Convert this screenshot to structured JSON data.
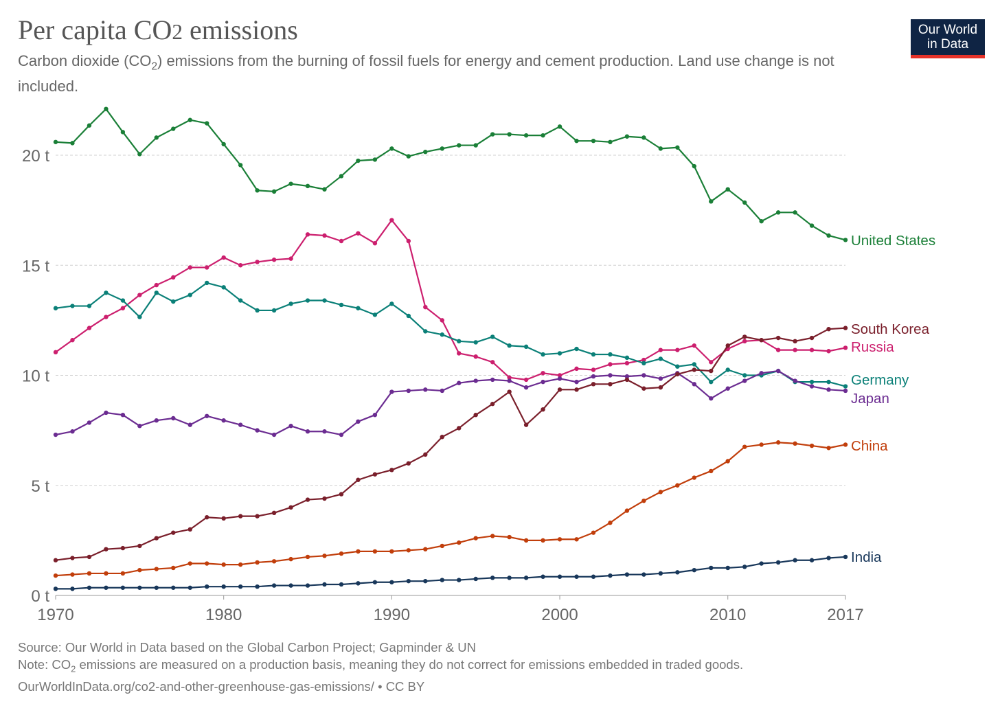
{
  "header": {
    "title_main": "Per capita CO",
    "title_sub": "2",
    "title_end": " emissions",
    "subtitle_a": "Carbon dioxide (CO",
    "subtitle_sub": "2",
    "subtitle_b": ") emissions from the burning of fossil fuels for energy and cement production. Land use change is not included."
  },
  "logo": {
    "line1": "Our World",
    "line2": "in Data",
    "bg": "#0f2444",
    "accent": "#e63229"
  },
  "footer": {
    "source": "Source: Our World in Data based on the Global Carbon Project; Gapminder & UN",
    "note_a": "Note: CO",
    "note_sub": "2",
    "note_b": " emissions are measured on a production basis, meaning they do not correct for emissions embedded in traded goods.",
    "url": "OurWorldInData.org/co2-and-other-greenhouse-gas-emissions/ • CC BY"
  },
  "chart_data": {
    "type": "line",
    "title": "Per capita CO2 emissions",
    "xlabel": "",
    "ylabel": "",
    "xlim": [
      1970,
      2017
    ],
    "ylim": [
      0,
      22.5
    ],
    "x_ticks": [
      "1970",
      "1980",
      "1990",
      "2000",
      "2010",
      "2017"
    ],
    "y_ticks": [
      "0 t",
      "5 t",
      "10 t",
      "15 t",
      "20 t"
    ],
    "y_tick_values": [
      0,
      5,
      10,
      15,
      20
    ],
    "grid": "horizontal dashed",
    "legend": "right end labels",
    "x": [
      1970,
      1971,
      1972,
      1973,
      1974,
      1975,
      1976,
      1977,
      1978,
      1979,
      1980,
      1981,
      1982,
      1983,
      1984,
      1985,
      1986,
      1987,
      1988,
      1989,
      1990,
      1991,
      1992,
      1993,
      1994,
      1995,
      1996,
      1997,
      1998,
      1999,
      2000,
      2001,
      2002,
      2003,
      2004,
      2005,
      2006,
      2007,
      2008,
      2009,
      2010,
      2011,
      2012,
      2013,
      2014,
      2015,
      2016,
      2017
    ],
    "series": [
      {
        "name": "United States",
        "color": "#1a7f37",
        "values": [
          20.6,
          20.55,
          21.35,
          22.1,
          21.05,
          20.05,
          20.8,
          21.2,
          21.6,
          21.45,
          20.5,
          19.55,
          18.4,
          18.35,
          18.7,
          18.6,
          18.45,
          19.05,
          19.75,
          19.8,
          20.3,
          19.95,
          20.15,
          20.3,
          20.45,
          20.45,
          20.95,
          20.95,
          20.9,
          20.9,
          21.3,
          20.65,
          20.65,
          20.6,
          20.85,
          20.8,
          20.3,
          20.35,
          19.5,
          17.9,
          18.45,
          17.85,
          17.0,
          17.4,
          17.4,
          16.8,
          16.35,
          16.15
        ]
      },
      {
        "name": "Russia",
        "color": "#cc1f6e",
        "values": [
          11.05,
          11.6,
          12.15,
          12.65,
          13.05,
          13.65,
          14.1,
          14.45,
          14.9,
          14.9,
          15.35,
          15.0,
          15.15,
          15.25,
          15.3,
          16.4,
          16.35,
          16.1,
          16.45,
          16.0,
          17.05,
          16.1,
          13.1,
          12.5,
          11.0,
          10.85,
          10.6,
          9.9,
          9.8,
          10.1,
          10.0,
          10.3,
          10.25,
          10.5,
          10.55,
          10.7,
          11.15,
          11.15,
          11.35,
          10.6,
          11.2,
          11.55,
          11.6,
          11.15,
          11.15,
          11.15,
          11.1,
          11.25
        ]
      },
      {
        "name": "Germany",
        "color": "#0b8078",
        "values": [
          13.05,
          13.15,
          13.15,
          13.75,
          13.4,
          12.65,
          13.75,
          13.35,
          13.65,
          14.2,
          14.0,
          13.4,
          12.95,
          12.95,
          13.25,
          13.4,
          13.4,
          13.2,
          13.05,
          12.75,
          13.25,
          12.7,
          12.0,
          11.85,
          11.55,
          11.5,
          11.75,
          11.35,
          11.3,
          10.95,
          11.0,
          11.2,
          10.95,
          10.95,
          10.8,
          10.55,
          10.75,
          10.4,
          10.5,
          9.7,
          10.25,
          10.0,
          10.0,
          10.2,
          9.7,
          9.7,
          9.7,
          9.5
        ]
      },
      {
        "name": "Japan",
        "color": "#6b2c91",
        "values": [
          7.3,
          7.45,
          7.85,
          8.3,
          8.2,
          7.7,
          7.95,
          8.05,
          7.75,
          8.15,
          7.95,
          7.75,
          7.5,
          7.3,
          7.7,
          7.45,
          7.45,
          7.3,
          7.9,
          8.2,
          9.25,
          9.3,
          9.35,
          9.3,
          9.65,
          9.75,
          9.8,
          9.75,
          9.45,
          9.7,
          9.85,
          9.7,
          9.95,
          10.0,
          9.95,
          10.0,
          9.85,
          10.1,
          9.6,
          8.95,
          9.4,
          9.75,
          10.1,
          10.2,
          9.75,
          9.5,
          9.35,
          9.3
        ]
      },
      {
        "name": "South Korea",
        "color": "#7a1f2b",
        "values": [
          1.6,
          1.7,
          1.75,
          2.1,
          2.15,
          2.25,
          2.6,
          2.85,
          3.0,
          3.55,
          3.5,
          3.6,
          3.6,
          3.75,
          4.0,
          4.35,
          4.4,
          4.6,
          5.25,
          5.5,
          5.7,
          6.0,
          6.4,
          7.2,
          7.6,
          8.2,
          8.7,
          9.25,
          7.75,
          8.45,
          9.35,
          9.35,
          9.6,
          9.6,
          9.8,
          9.4,
          9.45,
          10.05,
          10.25,
          10.2,
          11.35,
          11.75,
          11.6,
          11.7,
          11.55,
          11.7,
          12.1,
          12.15
        ]
      },
      {
        "name": "China",
        "color": "#c13e0b",
        "values": [
          0.9,
          0.95,
          1.0,
          1.0,
          1.0,
          1.15,
          1.2,
          1.25,
          1.45,
          1.45,
          1.4,
          1.4,
          1.5,
          1.55,
          1.65,
          1.75,
          1.8,
          1.9,
          2.0,
          2.0,
          2.0,
          2.05,
          2.1,
          2.25,
          2.4,
          2.6,
          2.7,
          2.65,
          2.5,
          2.5,
          2.55,
          2.55,
          2.85,
          3.3,
          3.85,
          4.3,
          4.7,
          5.0,
          5.35,
          5.65,
          6.1,
          6.75,
          6.85,
          6.95,
          6.9,
          6.8,
          6.7,
          6.85
        ]
      },
      {
        "name": "India",
        "color": "#18375a",
        "values": [
          0.3,
          0.3,
          0.35,
          0.35,
          0.35,
          0.35,
          0.35,
          0.35,
          0.35,
          0.4,
          0.4,
          0.4,
          0.4,
          0.45,
          0.45,
          0.45,
          0.5,
          0.5,
          0.55,
          0.6,
          0.6,
          0.65,
          0.65,
          0.7,
          0.7,
          0.75,
          0.8,
          0.8,
          0.8,
          0.85,
          0.85,
          0.85,
          0.85,
          0.9,
          0.95,
          0.95,
          1.0,
          1.05,
          1.15,
          1.25,
          1.25,
          1.3,
          1.45,
          1.5,
          1.6,
          1.6,
          1.7,
          1.75
        ]
      }
    ]
  }
}
